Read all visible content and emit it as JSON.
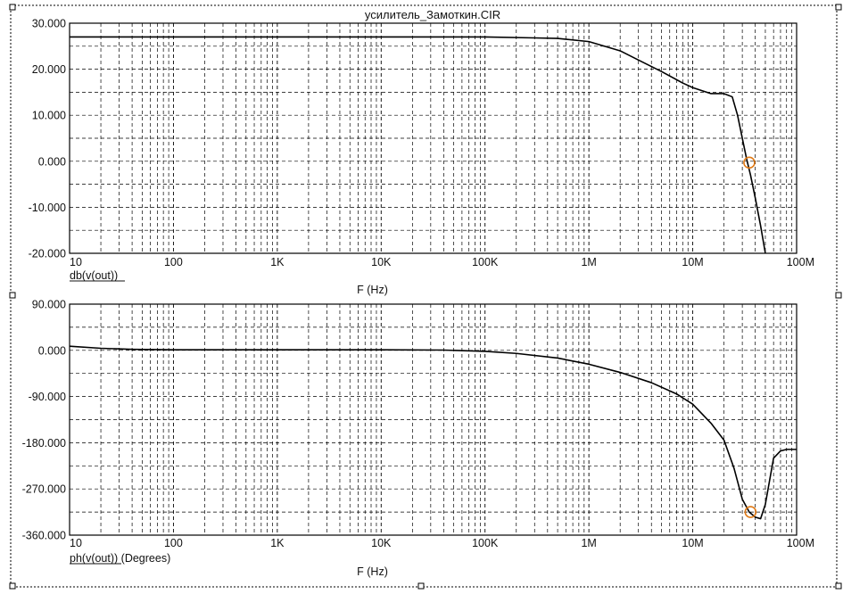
{
  "window": {
    "title": "усилитель_Замоткин.CIR"
  },
  "colors": {
    "trace": "#000000",
    "marker": "#e07a16",
    "grid": "#000000",
    "background": "#ffffff"
  },
  "chart_data": [
    {
      "type": "line",
      "title": "усилитель_Замоткин.CIR",
      "xscale": "log",
      "xlim": [
        10,
        100000000
      ],
      "ylim": [
        -20,
        30
      ],
      "xlabel": "F (Hz)",
      "ylabel": "db(v(out))",
      "x_tick_labels": [
        "10",
        "100",
        "1K",
        "10K",
        "100K",
        "1M",
        "10M",
        "100M"
      ],
      "y_tick_labels": [
        "30.000",
        "20.000",
        "10.000",
        "0.000",
        "-10.000",
        "-20.000"
      ],
      "series": [
        {
          "name": "db(v(out))",
          "x": [
            10,
            100,
            1000,
            10000,
            100000,
            300000,
            500000,
            1000000,
            2000000,
            3000000,
            5000000,
            8000000,
            10000000,
            15000000,
            20000000,
            24000000,
            27000000,
            30000000,
            33000000,
            36000000,
            40000000,
            45000000,
            50000000
          ],
          "y": [
            27,
            27,
            27,
            27,
            27,
            26.8,
            26.7,
            26.0,
            24.0,
            22.0,
            19.5,
            17.0,
            16.0,
            14.7,
            14.7,
            14.0,
            10.0,
            5.0,
            0.5,
            -3.0,
            -8.0,
            -14.0,
            -20.0
          ]
        }
      ],
      "markers": [
        {
          "x": 35000000,
          "y": -0.3
        }
      ],
      "grid": true
    },
    {
      "type": "line",
      "xscale": "log",
      "xlim": [
        10,
        100000000
      ],
      "ylim": [
        -360,
        90
      ],
      "xlabel": "F (Hz)",
      "ylabel": "ph(v(out)) (Degrees)",
      "x_tick_labels": [
        "10",
        "100",
        "1K",
        "10K",
        "100K",
        "1M",
        "10M",
        "100M"
      ],
      "y_tick_labels": [
        "90.000",
        "0.000",
        "-90.000",
        "-180.000",
        "-270.000",
        "-360.000"
      ],
      "series": [
        {
          "name": "ph(v(out))",
          "x": [
            10,
            20,
            40,
            100,
            1000,
            10000,
            40000,
            100000,
            200000,
            500000,
            1000000,
            2000000,
            4000000,
            7000000,
            10000000,
            15000000,
            20000000,
            25000000,
            30000000,
            35000000,
            40000000,
            45000000,
            50000000,
            60000000,
            70000000,
            80000000,
            100000000
          ],
          "y": [
            8,
            4,
            2,
            1,
            1,
            1,
            0.5,
            -2,
            -6,
            -15,
            -27,
            -43,
            -63,
            -85,
            -105,
            -142,
            -175,
            -230,
            -290,
            -315,
            -325,
            -328,
            -300,
            -210,
            -196,
            -193,
            -193
          ]
        }
      ],
      "markers": [
        {
          "x": 36000000,
          "y": -315
        }
      ],
      "grid": true
    }
  ]
}
